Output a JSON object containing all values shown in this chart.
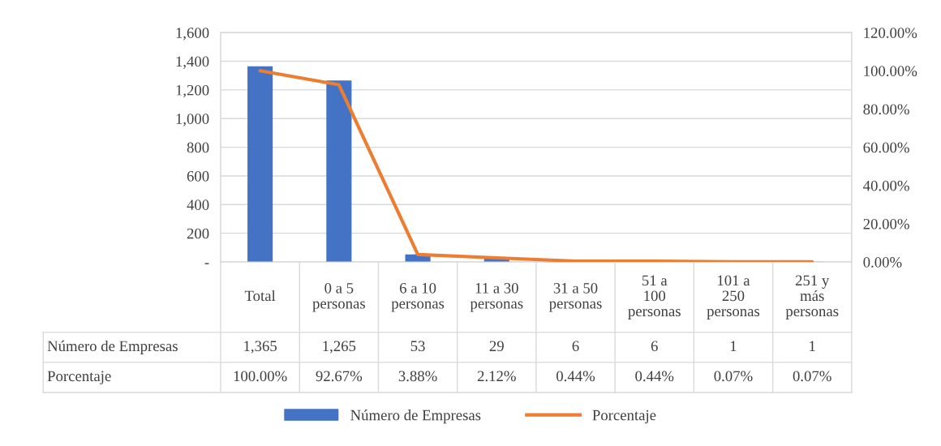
{
  "chart_data": {
    "type": "bar",
    "categories": [
      "Total",
      "0 a 5 personas",
      "6 a 10 personas",
      "11 a 30 personas",
      "31 a 50 personas",
      "51 a 100 personas",
      "101 a 250 personas",
      "251 y más personas"
    ],
    "series": [
      {
        "name": "Número de Empresas",
        "color": "#4472c4",
        "values": [
          1365,
          1265,
          53,
          29,
          6,
          6,
          1,
          1
        ],
        "value_labels": [
          "1,365",
          "1,265",
          "53",
          "29",
          "6",
          "6",
          "1",
          "1"
        ]
      },
      {
        "name": "Porcentaje",
        "type": "line",
        "axis": "y2",
        "color": "#ed7d31",
        "values": [
          100.0,
          92.67,
          3.88,
          2.12,
          0.44,
          0.44,
          0.07,
          0.07
        ],
        "value_labels": [
          "100.00%",
          "92.67%",
          "3.88%",
          "2.12%",
          "0.44%",
          "0.44%",
          "0.07%",
          "0.07%"
        ]
      }
    ],
    "ylim": [
      0,
      1600
    ],
    "yticks": [
      {
        "value": 0,
        "label": "-"
      },
      200,
      400,
      600,
      800,
      {
        "value": 1000,
        "label": "1,000"
      },
      {
        "value": 1200,
        "label": "1,200"
      },
      {
        "value": 1400,
        "label": "1,400"
      },
      {
        "value": 1600,
        "label": "1,600"
      }
    ],
    "y2lim": [
      0,
      120
    ],
    "y2ticks": [
      {
        "value": 0,
        "label": "0.00%"
      },
      {
        "value": 20,
        "label": "20.00%"
      },
      {
        "value": 40,
        "label": "40.00%"
      },
      {
        "value": 60,
        "label": "60.00%"
      },
      {
        "value": 80,
        "label": "80.00%"
      },
      {
        "value": 100,
        "label": "100.00%"
      },
      {
        "value": 120,
        "label": "120.00%"
      }
    ],
    "grid": "y",
    "legend": "bottom",
    "marker": "none",
    "line_style": "solid"
  }
}
